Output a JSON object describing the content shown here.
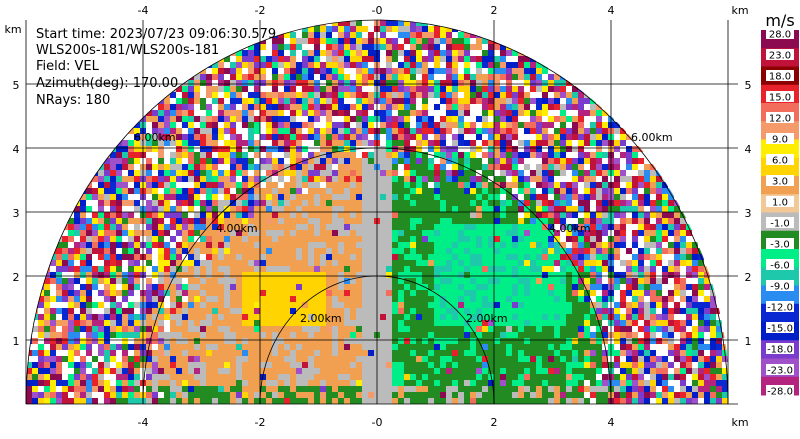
{
  "info": {
    "start_time": "Start time: 2023/07/23 09:06:30.579",
    "instrument": "WLS200s-181/WLS200s-181",
    "field": "Field: VEL",
    "azimuth": "Azimuth(deg): 170.00",
    "nrays": "NRays: 180"
  },
  "axes": {
    "unit": "km",
    "x_ticks": [
      "-4",
      "-2",
      "-0",
      "2",
      "4"
    ],
    "y_ticks": [
      "1",
      "2",
      "3",
      "4",
      "5"
    ]
  },
  "range_rings": [
    {
      "label": "2.00km"
    },
    {
      "label": "2.00km"
    },
    {
      "label": "4.00km"
    },
    {
      "label": "4.00km"
    },
    {
      "label": "6.00km"
    },
    {
      "label": "6.00km"
    }
  ],
  "colorbar": {
    "unit": "m/s",
    "labels": [
      "28.0",
      "23.0",
      "18.0",
      "15.0",
      "12.0",
      "9.0",
      "6.0",
      "3.0",
      "1.0",
      "-1.0",
      "-3.0",
      "-6.0",
      "-9.0",
      "-12.0",
      "-15.0",
      "-18.0",
      "-23.0",
      "-28.0"
    ],
    "colors": [
      "#8b0a50",
      "#c1133a",
      "#8b0000",
      "#e8222a",
      "#f26d5b",
      "#f49a6b",
      "#ffee00",
      "#ffd400",
      "#f0a050",
      "#f2c896",
      "#bbbbbb",
      "#228b22",
      "#00ee88",
      "#1ec8aa",
      "#2a8cf0",
      "#0a28d2",
      "#001ec8",
      "#7a3ccc",
      "#a050c8",
      "#b4237d"
    ]
  }
}
